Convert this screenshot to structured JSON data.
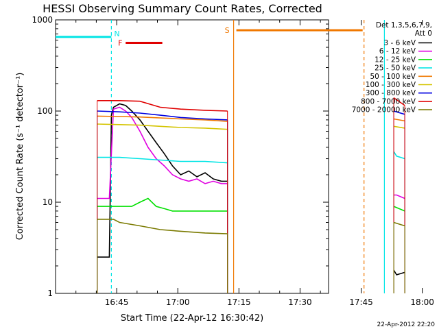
{
  "chart_data": {
    "type": "line",
    "title": "HESSI Observing Summary Count Rates, Corrected",
    "xlabel": "Start Time (22-Apr-12 16:30:42)",
    "ylabel": "Corrected Count Rate (s⁻¹ detector⁻¹)",
    "yscale": "log",
    "ylim": [
      1,
      1000
    ],
    "xlim_minutes": [
      -0.7,
      66.3
    ],
    "x_unit": "minutes after 16:30:42",
    "x_ticks": [
      {
        "label": "16:45",
        "value": 14.3
      },
      {
        "label": "17:00",
        "value": 29.3
      },
      {
        "label": "17:15",
        "value": 44.3
      },
      {
        "label": "17:30",
        "value": 59.3
      },
      {
        "label": "17:45",
        "value": 74.3
      },
      {
        "label": "18:00",
        "value": 89.3
      }
    ],
    "y_ticks": [
      {
        "label": "1",
        "value": 1
      },
      {
        "label": "10",
        "value": 10
      },
      {
        "label": "100",
        "value": 100
      },
      {
        "label": "1000",
        "value": 1000
      }
    ],
    "legend_header": [
      "Det 1,3,5,6,7,9,",
      "Att 0"
    ],
    "legend_position": "top-right, outside plot",
    "annotations": {
      "night_label": "N",
      "flare_label": "F",
      "saa_label": "S",
      "night_color": "#00e5e5",
      "flare_color": "#e00000",
      "saa_color": "#f07800",
      "night_periods": [
        [
          -1.0,
          13.0
        ],
        [
          80.0,
          90.0
        ]
      ],
      "flare_period": [
        16.5,
        25.5
      ],
      "saa_period": [
        43.0,
        75.0
      ],
      "night_level": 650,
      "flare_level": 560,
      "saa_level": 770
    },
    "series": [
      {
        "name": "3 - 6 keV",
        "color": "#000000",
        "x": [
          9.5,
          11.0,
          12.5,
          13.0,
          13.5,
          15.0,
          16.5,
          18.0,
          20.0,
          22.0,
          24.0,
          26.0,
          28.0,
          30.0,
          32.0,
          34.0,
          36.0,
          38.0,
          40.0,
          41.5,
          82.3,
          83.0,
          85.0
        ],
        "y": [
          2.5,
          2.5,
          2.5,
          90,
          110,
          120,
          115,
          100,
          80,
          60,
          45,
          34,
          25,
          20,
          22,
          19,
          21,
          18,
          17,
          17,
          1.8,
          1.6,
          1.7
        ]
      },
      {
        "name": "6 - 12 keV",
        "color": "#e000e0",
        "x": [
          9.5,
          11.0,
          12.5,
          13.5,
          15.0,
          16.5,
          18.0,
          20.0,
          22.0,
          24.0,
          26.0,
          28.0,
          30.0,
          32.0,
          34.0,
          36.0,
          38.0,
          40.0,
          41.5,
          82.3,
          83.0,
          85.0
        ],
        "y": [
          11,
          11,
          11,
          105,
          110,
          100,
          85,
          60,
          40,
          30,
          25,
          20,
          18,
          17,
          18,
          16,
          17,
          16,
          16,
          12,
          12,
          11
        ]
      },
      {
        "name": "12 - 25 keV",
        "color": "#00e000",
        "x": [
          9.5,
          13.5,
          15.0,
          18.0,
          20.0,
          22.0,
          24.0,
          26.0,
          28.0,
          32.0,
          36.0,
          41.5,
          82.3,
          85.0
        ],
        "y": [
          9,
          9,
          9,
          9,
          10,
          11,
          9,
          8.5,
          8,
          8,
          8,
          8,
          9,
          8
        ]
      },
      {
        "name": "25 - 50 keV",
        "color": "#00e5e5",
        "x": [
          9.5,
          13.5,
          15.0,
          20.0,
          25.0,
          30.0,
          36.0,
          41.5,
          82.3,
          83.0,
          85.0
        ],
        "y": [
          31,
          31,
          31,
          30,
          29,
          28,
          28,
          27,
          36,
          32,
          30
        ]
      },
      {
        "name": "50 - 100 keV",
        "color": "#f07800",
        "x": [
          9.5,
          15.0,
          20.0,
          25.0,
          30.0,
          36.0,
          41.5,
          82.3,
          85.0
        ],
        "y": [
          88,
          87,
          86,
          84,
          82,
          80,
          77,
          82,
          78
        ]
      },
      {
        "name": "100 - 300 keV",
        "color": "#d4c400",
        "x": [
          9.5,
          15.0,
          20.0,
          25.0,
          30.0,
          36.0,
          41.5,
          82.3,
          85.0
        ],
        "y": [
          72,
          71,
          70,
          68,
          66,
          65,
          63,
          68,
          65
        ]
      },
      {
        "name": "300 - 800 keV",
        "color": "#0000e0",
        "x": [
          9.5,
          15.0,
          20.0,
          25.0,
          30.0,
          36.0,
          41.5,
          82.3,
          85.0
        ],
        "y": [
          100,
          98,
          95,
          90,
          85,
          82,
          80,
          100,
          92
        ]
      },
      {
        "name": "800 - 7000 keV",
        "color": "#e00000",
        "x": [
          9.5,
          15.0,
          20.0,
          25.0,
          30.0,
          36.0,
          41.5,
          82.3,
          85.0
        ],
        "y": [
          130,
          130,
          128,
          110,
          105,
          102,
          100,
          140,
          115
        ]
      },
      {
        "name": "7000 - 20000 keV",
        "color": "#7a7a00",
        "x": [
          9.5,
          13.5,
          15.0,
          20.0,
          25.0,
          30.0,
          36.0,
          41.5,
          82.3,
          85.0
        ],
        "y": [
          6.5,
          6.5,
          6.0,
          5.5,
          5.0,
          4.8,
          4.6,
          4.5,
          6.0,
          5.5
        ]
      }
    ]
  },
  "footer": {
    "timestamp": "22-Apr-2012 22:20"
  }
}
